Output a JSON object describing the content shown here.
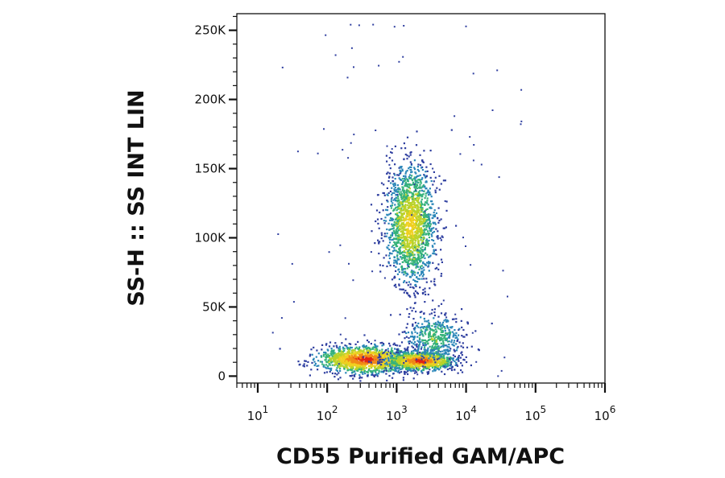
{
  "chart_data": {
    "type": "scatter",
    "subtype": "flow-cytometry-density-dotplot",
    "xlabel": "CD55 Purified GAM/APC",
    "ylabel": "SS-H :: SS INT LIN",
    "xscale": "log",
    "yscale": "linear",
    "xlim": [
      5,
      1000000
    ],
    "ylim": [
      -5000,
      262000
    ],
    "x_ticks": [
      {
        "base": "10",
        "exp": "1",
        "value": 10
      },
      {
        "base": "10",
        "exp": "2",
        "value": 100
      },
      {
        "base": "10",
        "exp": "3",
        "value": 1000
      },
      {
        "base": "10",
        "exp": "4",
        "value": 10000
      },
      {
        "base": "10",
        "exp": "5",
        "value": 100000
      },
      {
        "base": "10",
        "exp": "6",
        "value": 1000000
      }
    ],
    "y_ticks": [
      {
        "label": "0",
        "value": 0
      },
      {
        "label": "50K",
        "value": 50000
      },
      {
        "label": "100K",
        "value": 100000
      },
      {
        "label": "150K",
        "value": 150000
      },
      {
        "label": "200K",
        "value": 200000
      },
      {
        "label": "250K",
        "value": 250000
      }
    ],
    "grid": false,
    "legend": "none",
    "density_colors": [
      "#2f3fa0",
      "#2a86b8",
      "#35b27a",
      "#b8d22a",
      "#f0d020",
      "#f08a18",
      "#e02414"
    ],
    "populations": [
      {
        "x_center": 350,
        "x_spread_decades": 0.35,
        "y_center": 12000,
        "y_spread": 5000,
        "count": 1400,
        "peak_density": 1.0
      },
      {
        "x_center": 2200,
        "x_spread_decades": 0.25,
        "y_center": 11000,
        "y_spread": 3500,
        "count": 1100,
        "peak_density": 1.0
      },
      {
        "x_center": 3500,
        "x_spread_decades": 0.22,
        "y_center": 28000,
        "y_spread": 9000,
        "count": 450,
        "peak_density": 0.45
      },
      {
        "x_center": 1600,
        "x_spread_decades": 0.18,
        "y_center": 110000,
        "y_spread": 22000,
        "count": 1700,
        "peak_density": 0.7
      }
    ]
  }
}
